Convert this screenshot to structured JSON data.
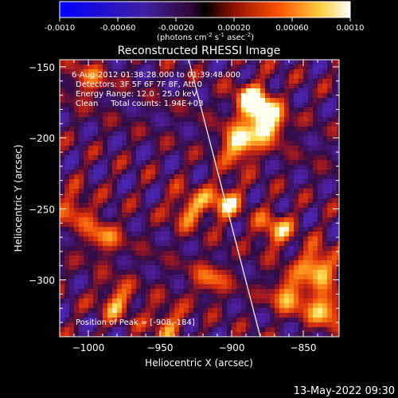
{
  "colorbar": {
    "ticks": [
      "-0.0010",
      "-0.00060",
      "-0.00020",
      "0.00020",
      "0.00060",
      "0.0010"
    ],
    "units": "(photons cm",
    "units_sup1": "-2",
    "units_mid": " s",
    "units_sup2": "-1",
    "units_mid2": " asec",
    "units_sup3": "-2",
    "units_end": ")",
    "range": [
      -0.001,
      0.001
    ]
  },
  "chart_data": {
    "type": "heatmap",
    "title": "Reconstructed RHESSI Image",
    "xlabel": "Heliocentric X (arcsec)",
    "ylabel": "Heliocentric Y (arcsec)",
    "xlim": [
      -1020,
      -825
    ],
    "ylim": [
      -340,
      -145
    ],
    "xticks": [
      -1000,
      -950,
      -900,
      -850
    ],
    "yticks": [
      -150,
      -200,
      -250,
      -300
    ],
    "xtick_labels": [
      "−1000",
      "−950",
      "−900",
      "−850"
    ],
    "ytick_labels": [
      "−150",
      "−200",
      "−250",
      "−300"
    ],
    "limb_line": [
      [
        -930,
        -145
      ],
      [
        -880,
        -340
      ]
    ],
    "peak_position": [
      -908,
      -184
    ],
    "annotations": {
      "time": "6-Aug-2012 01:38:28.000 to 01:39:48.000",
      "detectors": "Detectors: 3F 5F 6F 7F 8F, Att 0",
      "energy": "Energy Range: 12.0 - 25.0 keV",
      "clean": "Clean     Total counts: 1.94E+03",
      "peak": "Position of Peak = [-908,-184]"
    },
    "footer_date": "13-May-2022 09:30",
    "colormap": "blue-purple-red-yellow-white",
    "emission_blobs": [
      {
        "x": -885,
        "y": -175,
        "v": 1.0
      },
      {
        "x": -875,
        "y": -190,
        "v": 0.95
      },
      {
        "x": -895,
        "y": -205,
        "v": 0.9
      },
      {
        "x": -905,
        "y": -245,
        "v": 0.7
      },
      {
        "x": -930,
        "y": -250,
        "v": 0.6
      },
      {
        "x": -870,
        "y": -265,
        "v": 0.65
      },
      {
        "x": -840,
        "y": -290,
        "v": 0.85
      },
      {
        "x": -835,
        "y": -320,
        "v": 0.8
      },
      {
        "x": -990,
        "y": -270,
        "v": 0.55
      },
      {
        "x": -1000,
        "y": -160,
        "v": 0.5
      },
      {
        "x": -980,
        "y": -315,
        "v": 0.6
      },
      {
        "x": -860,
        "y": -310,
        "v": 0.7
      },
      {
        "x": -945,
        "y": -330,
        "v": 0.5
      },
      {
        "x": -1010,
        "y": -250,
        "v": 0.5
      },
      {
        "x": -915,
        "y": -300,
        "v": 0.5
      }
    ]
  }
}
